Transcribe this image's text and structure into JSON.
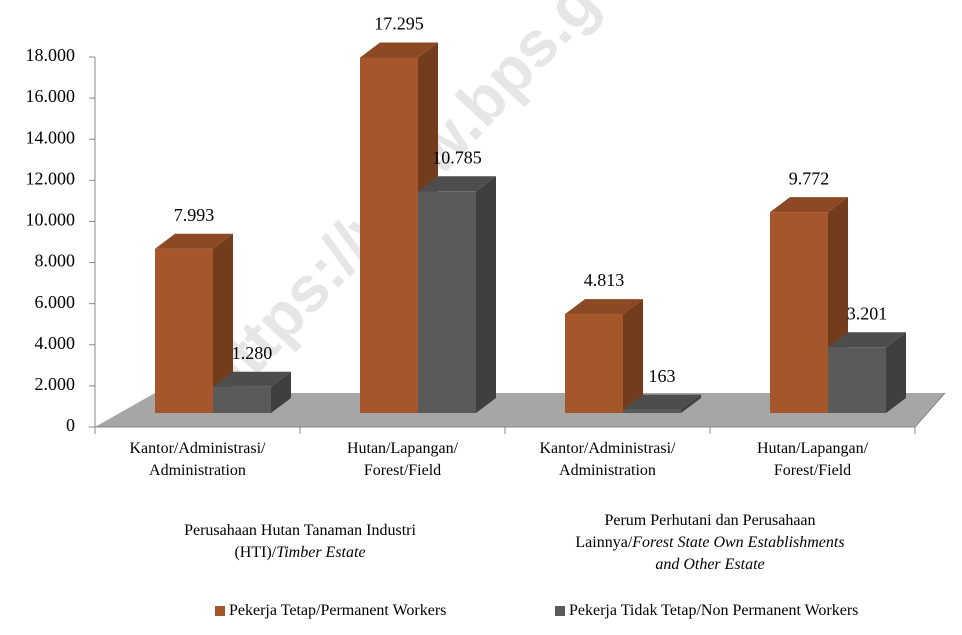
{
  "chart_data": {
    "type": "bar3d",
    "watermark": "https://www.bps.go.id",
    "categories": [
      "Kantor/Administrasi/\nAdministration",
      "Hutan/Lapangan/\nForest/Field",
      "Kantor/Administrasi/\nAdministration",
      "Hutan/Lapangan/\nForest/Field"
    ],
    "groups": [
      {
        "label": "Perusahaan Hutan Tanaman Industri (HTI)/",
        "label_en": "Timber Estate"
      },
      {
        "label": "Perum Perhutani dan Perusahaan Lainnya/",
        "label_en": "Forest State Own Establishments and Other Estate"
      }
    ],
    "series": [
      {
        "name": "Pekerja Tetap/Permanent Workers",
        "color": "#a5562a",
        "values": [
          7993,
          17295,
          4813,
          9772
        ],
        "value_labels": [
          "7.993",
          "17.295",
          "4.813",
          "9.772"
        ]
      },
      {
        "name": "Pekerja Tidak Tetap/Non Permanent Workers",
        "color": "#5a5a5a",
        "values": [
          1280,
          10785,
          163,
          3201
        ],
        "value_labels": [
          "1.280",
          "10.785",
          "163",
          "3.201"
        ]
      }
    ],
    "ylim": [
      0,
      18000
    ],
    "yticks": [
      0,
      {
        "value": 2000,
        "label": "2.000"
      },
      {
        "value": 4000,
        "label": "4.000"
      },
      {
        "value": 6000,
        "label": "6.000"
      },
      {
        "value": 8000,
        "label": "8.000"
      },
      {
        "value": 10000,
        "label": "10.000"
      },
      {
        "value": 12000,
        "label": "12.000"
      },
      {
        "value": 14000,
        "label": "14.000"
      },
      {
        "value": 16000,
        "label": "16.000"
      },
      {
        "value": 18000,
        "label": "18.000"
      }
    ],
    "legend": "bottom"
  }
}
